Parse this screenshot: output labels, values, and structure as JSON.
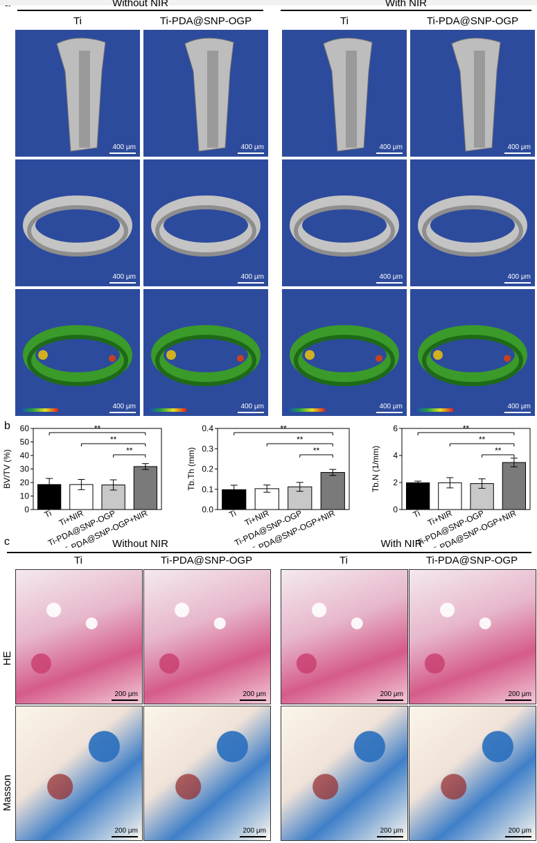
{
  "panel_a": {
    "letter": "a",
    "groups": [
      "Without NIR",
      "With NIR"
    ],
    "columns": [
      "Ti",
      "Ti-PDA@SNP-OGP",
      "Ti",
      "Ti-PDA@SNP-OGP"
    ],
    "scale_bar": "400 μm"
  },
  "panel_b": {
    "letter": "b"
  },
  "panel_c": {
    "letter": "c",
    "groups": [
      "Without NIR",
      "With NIR"
    ],
    "columns": [
      "Ti",
      "Ti-PDA@SNP-OGP",
      "Ti",
      "Ti-PDA@SNP-OGP"
    ],
    "rows": [
      "HE",
      "Masson"
    ],
    "scale_bar": "200 μm"
  },
  "chart_data": [
    {
      "type": "bar",
      "categories": [
        "Ti",
        "Ti+NIR",
        "Ti-PDA@SNP-OGP",
        "Ti-PDA@SNP-OGP+NIR"
      ],
      "values": [
        18.5,
        18.5,
        18.2,
        31.8
      ],
      "errors": [
        4.5,
        3.8,
        3.8,
        2.2
      ],
      "colors": [
        "#000000",
        "#ffffff",
        "#c8c8c8",
        "#7a7a7a"
      ],
      "ylabel": "BV/TV (%)",
      "ylim": [
        0,
        60
      ],
      "yticks": [
        0,
        10,
        20,
        30,
        40,
        50,
        60
      ],
      "significance": [
        "**",
        "**",
        "**"
      ]
    },
    {
      "type": "bar",
      "categories": [
        "Ti",
        "Ti+NIR",
        "Ti-PDA@SNP-OGP",
        "Ti-PDA@SNP-OGP+NIR"
      ],
      "values": [
        0.098,
        0.103,
        0.112,
        0.183
      ],
      "errors": [
        0.022,
        0.018,
        0.022,
        0.015
      ],
      "colors": [
        "#000000",
        "#ffffff",
        "#c8c8c8",
        "#7a7a7a"
      ],
      "ylabel": "Tb.Th (mm)",
      "ylim": [
        0,
        0.4
      ],
      "yticks": [
        0.0,
        0.1,
        0.2,
        0.3,
        0.4
      ],
      "significance": [
        "**",
        "**",
        "**"
      ]
    },
    {
      "type": "bar",
      "categories": [
        "Ti",
        "Ti+NIR",
        "Ti-PDA@SNP-OGP",
        "Ti-PDA@SNP-OGP+NIR"
      ],
      "values": [
        1.98,
        1.98,
        1.92,
        3.48
      ],
      "errors": [
        0.12,
        0.38,
        0.35,
        0.32
      ],
      "colors": [
        "#000000",
        "#ffffff",
        "#c8c8c8",
        "#7a7a7a"
      ],
      "ylabel": "Tb.N (1/mm)",
      "ylim": [
        0,
        6
      ],
      "yticks": [
        0,
        2,
        4,
        6
      ],
      "significance": [
        "**",
        "**",
        "**"
      ]
    }
  ]
}
